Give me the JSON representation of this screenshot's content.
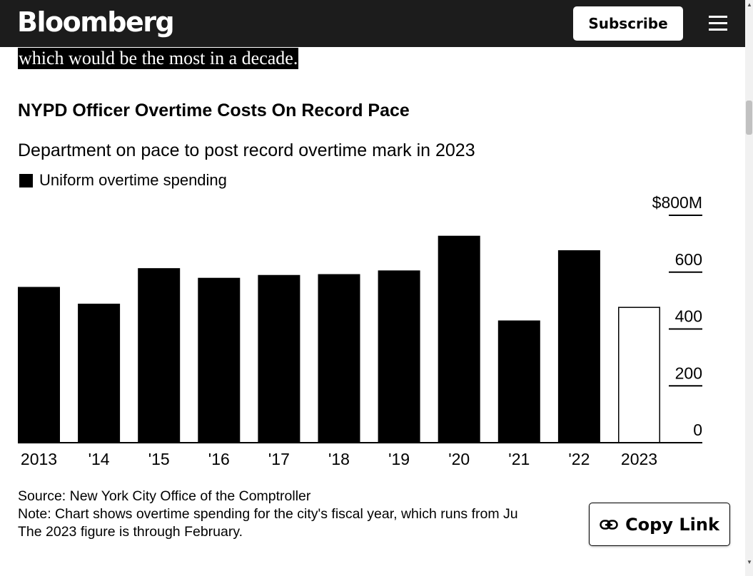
{
  "header": {
    "brand": "Bloomberg",
    "subscribe_label": "Subscribe",
    "menu_icon": "hamburger-menu-icon"
  },
  "article": {
    "highlighted_text": "which would be the most in a decade."
  },
  "chart_data": {
    "type": "bar",
    "title": "NYPD Officer Overtime Costs On Record Pace",
    "subtitle": "Department on pace to post record overtime mark in 2023",
    "legend": [
      "Uniform overtime spending"
    ],
    "categories": [
      "2013",
      "'14",
      "'15",
      "'16",
      "'17",
      "'18",
      "'19",
      "'20",
      "'21",
      "'22",
      "2023"
    ],
    "series": [
      {
        "name": "Uniform overtime spending",
        "values": [
          548,
          489,
          614,
          580,
          590,
          593,
          606,
          728,
          430,
          677,
          476
        ],
        "style": [
          "filled",
          "filled",
          "filled",
          "filled",
          "filled",
          "filled",
          "filled",
          "filled",
          "filled",
          "filled",
          "outline"
        ]
      }
    ],
    "ylim": [
      0,
      800
    ],
    "yticks": [
      0,
      200,
      400,
      600,
      800
    ],
    "ytick_labels": [
      "0",
      "200",
      "400",
      "600",
      "$800M"
    ],
    "y_axis_position": "right",
    "grid": false,
    "legend_placement": "top-left",
    "colors": {
      "bar": "#000000",
      "outline_fill": "#ffffff"
    }
  },
  "notes": {
    "source": "Source: New York City Office of the Comptroller",
    "note_line1": "Note: Chart shows overtime spending for the city's fiscal year, which runs from Ju",
    "note_line2": "The 2023 figure is through February."
  },
  "copy_link": {
    "label": "Copy Link",
    "icon": "link-icon"
  }
}
